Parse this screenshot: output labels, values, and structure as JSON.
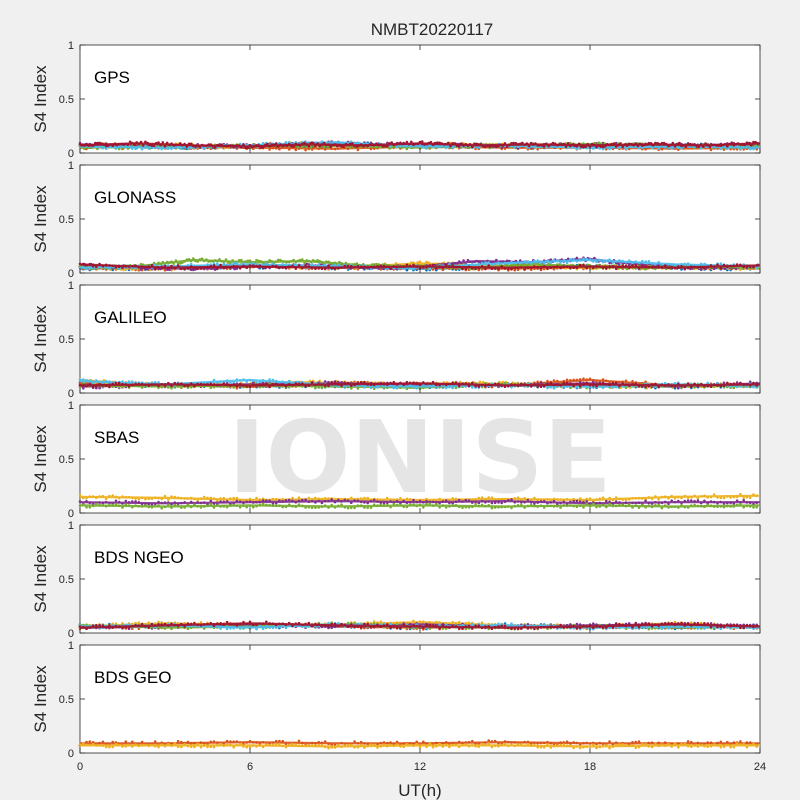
{
  "title": "NMBT20220117",
  "xlabel": "UT(h)",
  "watermark": "IONISE",
  "chart_data": {
    "type": "scatter",
    "title": "NMBT20220117",
    "xlabel": "UT(h)",
    "ylabel": "S4 Index",
    "xlim": [
      0,
      24
    ],
    "ylim": [
      0,
      1
    ],
    "xticks": [
      0,
      6,
      12,
      18,
      24
    ],
    "yticks": [
      0,
      0.5,
      1
    ],
    "grid": false,
    "panel_colors": [
      "#0072BD",
      "#D95319",
      "#EDB120",
      "#7E2F8E",
      "#77AC30",
      "#4DBEEE",
      "#A2142F"
    ],
    "panels": [
      {
        "label": "GPS",
        "ylabel": "S4 Index",
        "series": [
          {
            "color": "#0072BD",
            "x": [
              0,
              2,
              4,
              6,
              8,
              10,
              12,
              14,
              16,
              18,
              20,
              22,
              24
            ],
            "y": [
              0.06,
              0.07,
              0.05,
              0.06,
              0.07,
              0.08,
              0.06,
              0.07,
              0.06,
              0.07,
              0.06,
              0.07,
              0.06
            ]
          },
          {
            "color": "#D95319",
            "x": [
              0,
              3,
              6,
              9,
              12,
              15,
              18,
              21,
              24
            ],
            "y": [
              0.05,
              0.06,
              0.05,
              0.04,
              0.06,
              0.05,
              0.05,
              0.04,
              0.05
            ]
          },
          {
            "color": "#EDB120",
            "x": [
              0,
              2,
              5,
              8,
              11,
              14,
              17,
              20,
              24
            ],
            "y": [
              0.07,
              0.08,
              0.06,
              0.09,
              0.07,
              0.08,
              0.06,
              0.07,
              0.06
            ]
          },
          {
            "color": "#7E2F8E",
            "x": [
              0,
              3,
              6,
              9,
              12,
              15,
              18,
              21,
              24
            ],
            "y": [
              0.08,
              0.06,
              0.07,
              0.09,
              0.07,
              0.06,
              0.08,
              0.07,
              0.08
            ]
          },
          {
            "color": "#77AC30",
            "x": [
              0,
              4,
              8,
              12,
              16,
              18,
              20,
              24
            ],
            "y": [
              0.05,
              0.06,
              0.07,
              0.05,
              0.07,
              0.08,
              0.07,
              0.06
            ]
          },
          {
            "color": "#4DBEEE",
            "x": [
              0,
              3,
              6,
              9,
              12,
              15,
              18,
              21,
              24
            ],
            "y": [
              0.06,
              0.05,
              0.07,
              0.1,
              0.06,
              0.07,
              0.05,
              0.06,
              0.05
            ]
          },
          {
            "color": "#A2142F",
            "x": [
              0,
              2,
              4,
              6,
              8,
              10,
              12,
              14,
              16,
              18,
              20,
              22,
              24
            ],
            "y": [
              0.07,
              0.09,
              0.07,
              0.06,
              0.08,
              0.07,
              0.09,
              0.07,
              0.08,
              0.07,
              0.08,
              0.07,
              0.09
            ]
          }
        ]
      },
      {
        "label": "GLONASS",
        "ylabel": "S4 Index",
        "series": [
          {
            "color": "#0072BD",
            "x": [
              0,
              3,
              6,
              9,
              12,
              15,
              18,
              21,
              24
            ],
            "y": [
              0.04,
              0.05,
              0.06,
              0.05,
              0.04,
              0.05,
              0.06,
              0.05,
              0.04
            ]
          },
          {
            "color": "#D95319",
            "x": [
              0,
              3,
              6,
              9,
              12,
              15,
              18,
              21,
              24
            ],
            "y": [
              0.05,
              0.04,
              0.06,
              0.05,
              0.05,
              0.04,
              0.05,
              0.06,
              0.05
            ]
          },
          {
            "color": "#EDB120",
            "x": [
              0,
              2,
              4,
              6,
              8,
              10,
              12,
              14,
              16,
              18,
              20,
              22,
              24
            ],
            "y": [
              0.06,
              0.04,
              0.05,
              0.07,
              0.05,
              0.06,
              0.09,
              0.07,
              0.06,
              0.05,
              0.06,
              0.05,
              0.04
            ]
          },
          {
            "color": "#7E2F8E",
            "x": [
              0,
              2,
              4,
              6,
              8,
              10,
              12,
              14,
              16,
              18,
              20,
              22,
              24
            ],
            "y": [
              0.07,
              0.05,
              0.04,
              0.06,
              0.07,
              0.05,
              0.06,
              0.11,
              0.1,
              0.13,
              0.07,
              0.05,
              0.06
            ]
          },
          {
            "color": "#77AC30",
            "x": [
              0,
              2,
              4,
              6,
              8,
              10,
              12,
              14,
              16,
              18,
              20,
              22,
              24
            ],
            "y": [
              0.05,
              0.06,
              0.12,
              0.1,
              0.11,
              0.07,
              0.06,
              0.05,
              0.08,
              0.06,
              0.05,
              0.06,
              0.05
            ]
          },
          {
            "color": "#4DBEEE",
            "x": [
              0,
              3,
              6,
              9,
              12,
              15,
              18,
              21,
              24
            ],
            "y": [
              0.05,
              0.06,
              0.08,
              0.06,
              0.05,
              0.09,
              0.12,
              0.08,
              0.06
            ]
          },
          {
            "color": "#A2142F",
            "x": [
              0,
              3,
              6,
              9,
              12,
              15,
              18,
              21,
              24
            ],
            "y": [
              0.08,
              0.05,
              0.06,
              0.05,
              0.06,
              0.05,
              0.06,
              0.05,
              0.07
            ]
          }
        ]
      },
      {
        "label": "GALILEO",
        "ylabel": "S4 Index",
        "series": [
          {
            "color": "#0072BD",
            "x": [
              0,
              3,
              6,
              9,
              12,
              15,
              18,
              21,
              24
            ],
            "y": [
              0.08,
              0.07,
              0.06,
              0.07,
              0.06,
              0.07,
              0.06,
              0.06,
              0.07
            ]
          },
          {
            "color": "#D95319",
            "x": [
              0,
              3,
              6,
              9,
              12,
              15,
              18,
              21,
              24
            ],
            "y": [
              0.1,
              0.07,
              0.06,
              0.09,
              0.08,
              0.07,
              0.12,
              0.07,
              0.08
            ]
          },
          {
            "color": "#EDB120",
            "x": [
              0,
              2,
              5,
              8,
              11,
              14,
              17,
              20,
              24
            ],
            "y": [
              0.12,
              0.08,
              0.07,
              0.1,
              0.08,
              0.09,
              0.07,
              0.06,
              0.08
            ]
          },
          {
            "color": "#7E2F8E",
            "x": [
              0,
              3,
              6,
              9,
              12,
              15,
              18,
              21,
              24
            ],
            "y": [
              0.06,
              0.07,
              0.08,
              0.09,
              0.08,
              0.07,
              0.09,
              0.06,
              0.09
            ]
          },
          {
            "color": "#77AC30",
            "x": [
              0,
              3,
              6,
              9,
              12,
              15,
              18,
              21,
              24
            ],
            "y": [
              0.07,
              0.06,
              0.07,
              0.06,
              0.05,
              0.08,
              0.06,
              0.07,
              0.06
            ]
          },
          {
            "color": "#4DBEEE",
            "x": [
              0,
              3,
              6,
              9,
              12,
              15,
              18,
              21,
              24
            ],
            "y": [
              0.11,
              0.08,
              0.12,
              0.07,
              0.06,
              0.07,
              0.06,
              0.08,
              0.07
            ]
          },
          {
            "color": "#A2142F",
            "x": [
              0,
              3,
              6,
              9,
              12,
              15,
              18,
              21,
              24
            ],
            "y": [
              0.07,
              0.08,
              0.07,
              0.08,
              0.09,
              0.07,
              0.08,
              0.07,
              0.08
            ]
          }
        ]
      },
      {
        "label": "SBAS",
        "ylabel": "S4 Index",
        "series": [
          {
            "color": "#EDB120",
            "x": [
              0,
              3,
              6,
              9,
              12,
              15,
              18,
              21,
              24
            ],
            "y": [
              0.15,
              0.14,
              0.12,
              0.13,
              0.12,
              0.13,
              0.12,
              0.15,
              0.16
            ]
          },
          {
            "color": "#7E2F8E",
            "x": [
              0,
              3,
              6,
              9,
              12,
              15,
              18,
              21,
              24
            ],
            "y": [
              0.1,
              0.09,
              0.1,
              0.11,
              0.1,
              0.11,
              0.09,
              0.1,
              0.1
            ]
          },
          {
            "color": "#77AC30",
            "x": [
              0,
              3,
              6,
              9,
              12,
              15,
              18,
              21,
              24
            ],
            "y": [
              0.07,
              0.06,
              0.07,
              0.06,
              0.07,
              0.06,
              0.07,
              0.06,
              0.07
            ]
          }
        ]
      },
      {
        "label": "BDS NGEO",
        "ylabel": "S4 Index",
        "series": [
          {
            "color": "#0072BD",
            "x": [
              0,
              3,
              6,
              9,
              12,
              15,
              18,
              21,
              24
            ],
            "y": [
              0.06,
              0.08,
              0.06,
              0.07,
              0.05,
              0.07,
              0.06,
              0.05,
              0.06
            ]
          },
          {
            "color": "#D95319",
            "x": [
              0,
              3,
              6,
              9,
              12,
              15,
              18,
              21,
              24
            ],
            "y": [
              0.05,
              0.06,
              0.08,
              0.06,
              0.05,
              0.06,
              0.05,
              0.06,
              0.05
            ]
          },
          {
            "color": "#EDB120",
            "x": [
              0,
              3,
              6,
              9,
              12,
              15,
              18,
              21,
              24
            ],
            "y": [
              0.06,
              0.09,
              0.07,
              0.08,
              0.1,
              0.07,
              0.06,
              0.09,
              0.05
            ]
          },
          {
            "color": "#7E2F8E",
            "x": [
              0,
              3,
              6,
              9,
              12,
              15,
              18,
              21,
              24
            ],
            "y": [
              0.05,
              0.06,
              0.07,
              0.06,
              0.08,
              0.06,
              0.07,
              0.08,
              0.06
            ]
          },
          {
            "color": "#77AC30",
            "x": [
              0,
              3,
              6,
              9,
              12,
              15,
              18,
              21,
              24
            ],
            "y": [
              0.07,
              0.05,
              0.06,
              0.08,
              0.06,
              0.05,
              0.06,
              0.05,
              0.06
            ]
          },
          {
            "color": "#4DBEEE",
            "x": [
              0,
              3,
              6,
              9,
              12,
              15,
              18,
              21,
              24
            ],
            "y": [
              0.06,
              0.07,
              0.05,
              0.08,
              0.06,
              0.07,
              0.05,
              0.06,
              0.05
            ]
          },
          {
            "color": "#A2142F",
            "x": [
              0,
              3,
              6,
              9,
              12,
              15,
              18,
              21,
              24
            ],
            "y": [
              0.05,
              0.07,
              0.09,
              0.07,
              0.06,
              0.05,
              0.06,
              0.08,
              0.06
            ]
          }
        ]
      },
      {
        "label": "BDS GEO",
        "ylabel": "S4 Index",
        "series": [
          {
            "color": "#D95319",
            "x": [
              0,
              3,
              6,
              9,
              12,
              15,
              18,
              21,
              24
            ],
            "y": [
              0.09,
              0.09,
              0.1,
              0.09,
              0.09,
              0.1,
              0.09,
              0.09,
              0.09
            ]
          },
          {
            "color": "#EDB120",
            "x": [
              0,
              3,
              6,
              9,
              12,
              15,
              18,
              21,
              24
            ],
            "y": [
              0.07,
              0.07,
              0.07,
              0.06,
              0.07,
              0.07,
              0.06,
              0.07,
              0.07
            ]
          }
        ]
      }
    ]
  }
}
